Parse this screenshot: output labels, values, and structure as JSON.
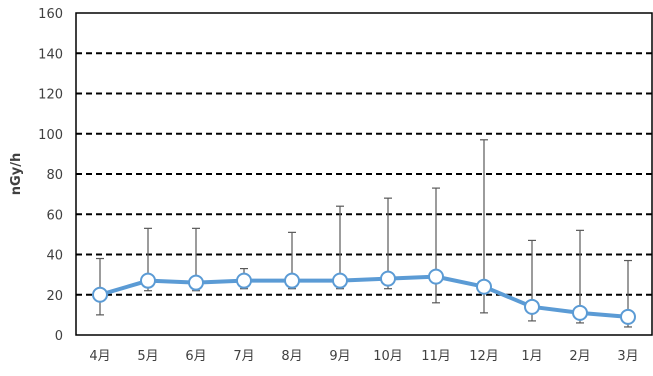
{
  "chart_data": {
    "type": "line",
    "title": "",
    "xlabel": "",
    "ylabel": "nGy/h",
    "ylim": [
      0,
      160
    ],
    "yticks": [
      0,
      20,
      40,
      60,
      80,
      100,
      120,
      140,
      160
    ],
    "grid": "dashed-horizontal",
    "legend": "none",
    "categories": [
      "4月",
      "5月",
      "6月",
      "7月",
      "8月",
      "9月",
      "10月",
      "11月",
      "12月",
      "1月",
      "2月",
      "3月"
    ],
    "series": [
      {
        "values": [
          20,
          27,
          26,
          27,
          27,
          27,
          28,
          29,
          24,
          14,
          11,
          9
        ],
        "error_max": [
          38,
          53,
          53,
          33,
          51,
          64,
          68,
          73,
          97,
          47,
          52,
          37
        ],
        "error_min": [
          10,
          22,
          22,
          23,
          23,
          23,
          23,
          16,
          11,
          7,
          6,
          4
        ]
      }
    ],
    "colors": {
      "line": "#5b9bd5",
      "marker_fill": "#ffffff",
      "error_bar": "#595959",
      "grid": "#000000",
      "axis": "#000000"
    }
  }
}
